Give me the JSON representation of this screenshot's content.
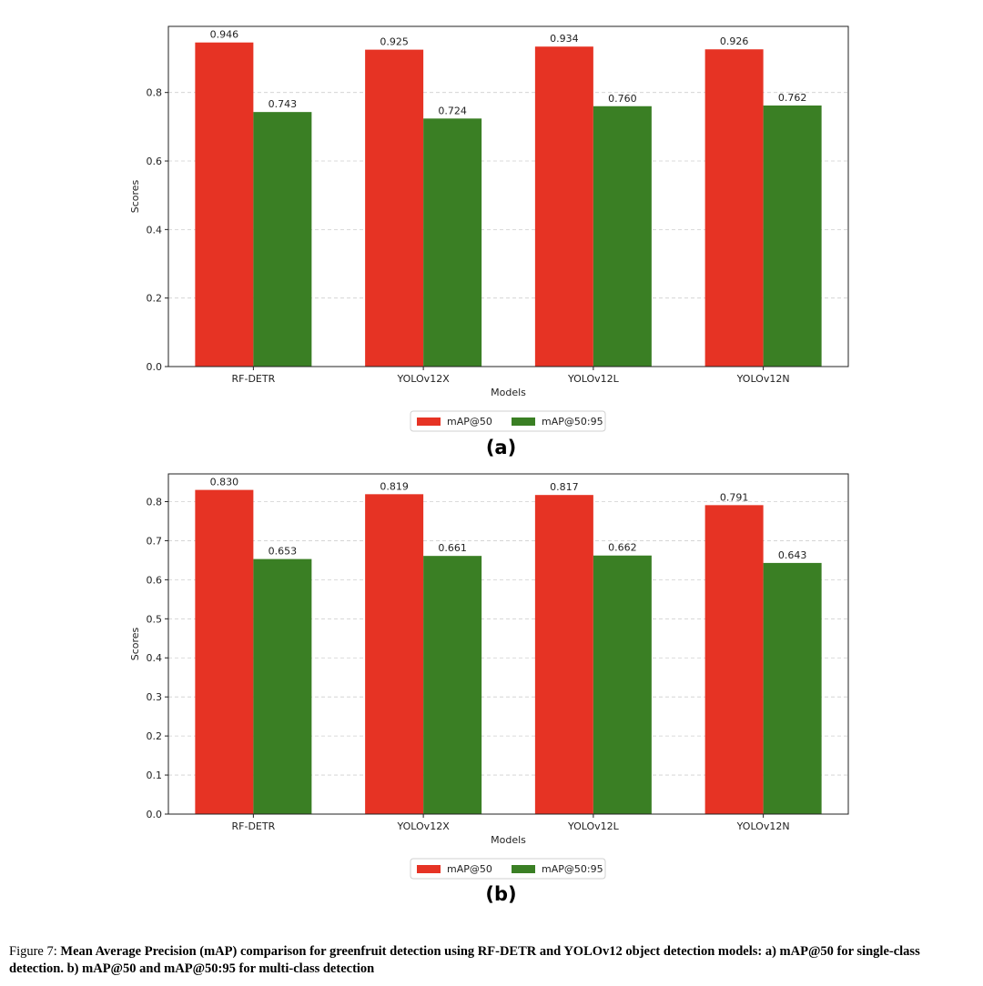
{
  "chart_data": [
    {
      "type": "bar",
      "panel_label": "(a)",
      "categories": [
        "RF-DETR",
        "YOLOv12X",
        "YOLOv12L",
        "YOLOv12N"
      ],
      "series": [
        {
          "name": "mAP@50",
          "values": [
            0.946,
            0.925,
            0.934,
            0.926
          ],
          "labels": [
            "0.946",
            "0.925",
            "0.934",
            "0.926"
          ],
          "color": "#e63324"
        },
        {
          "name": "mAP@50:95",
          "values": [
            0.743,
            0.724,
            0.76,
            0.762
          ],
          "labels": [
            "0.743",
            "0.724",
            "0.760",
            "0.762"
          ],
          "color": "#3a7f24"
        }
      ],
      "xlabel": "Models",
      "ylabel": "Scores",
      "ylim": [
        0,
        0.993
      ],
      "yticks": [
        0.0,
        0.2,
        0.4,
        0.6,
        0.8
      ],
      "ytick_labels": [
        "0.0",
        "0.2",
        "0.4",
        "0.6",
        "0.8"
      ],
      "grid": "horizontal dashed",
      "legend_position": "below"
    },
    {
      "type": "bar",
      "panel_label": "(b)",
      "categories": [
        "RF-DETR",
        "YOLOv12X",
        "YOLOv12L",
        "YOLOv12N"
      ],
      "series": [
        {
          "name": "mAP@50",
          "values": [
            0.83,
            0.819,
            0.817,
            0.791
          ],
          "labels": [
            "0.830",
            "0.819",
            "0.817",
            "0.791"
          ],
          "color": "#e63324"
        },
        {
          "name": "mAP@50:95",
          "values": [
            0.653,
            0.661,
            0.662,
            0.643
          ],
          "labels": [
            "0.653",
            "0.661",
            "0.662",
            "0.643"
          ],
          "color": "#3a7f24"
        }
      ],
      "xlabel": "Models",
      "ylabel": "Scores",
      "ylim": [
        0,
        0.871
      ],
      "yticks": [
        0.0,
        0.1,
        0.2,
        0.3,
        0.4,
        0.5,
        0.6,
        0.7,
        0.8
      ],
      "ytick_labels": [
        "0.0",
        "0.1",
        "0.2",
        "0.3",
        "0.4",
        "0.5",
        "0.6",
        "0.7",
        "0.8"
      ],
      "grid": "horizontal dashed",
      "legend_position": "below"
    }
  ],
  "caption": {
    "prefix": "Figure 7: ",
    "text": "Mean Average Precision (mAP) comparison for greenfruit detection using RF-DETR and YOLOv12 object detection models: a) mAP@50 for single-class detection. b) mAP@50 and mAP@50:95 for multi-class detection"
  }
}
